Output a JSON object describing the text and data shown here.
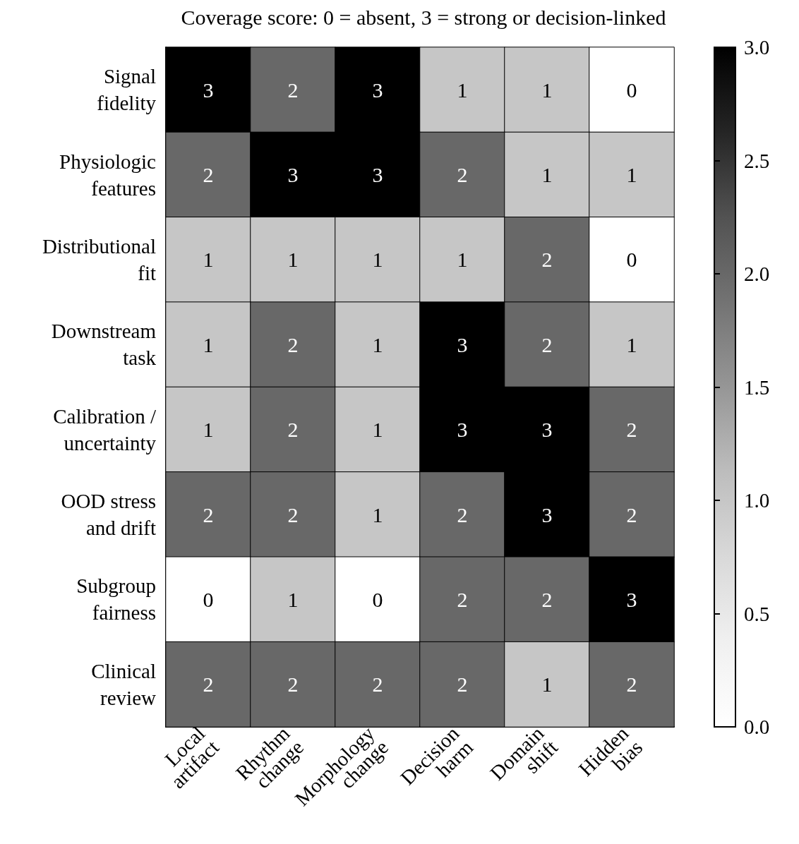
{
  "chart_data": {
    "type": "heatmap",
    "title": "Coverage score: 0 = absent, 3 = strong or decision-linked",
    "categories": [
      "Local\nartifact",
      "Rhythm\nchange",
      "Morphology\nchange",
      "Decision\nharm",
      "Domain\nshift",
      "Hidden\nbias"
    ],
    "y_categories": [
      "Signal\nfidelity",
      "Physiologic\nfeatures",
      "Distributional\nfit",
      "Downstream\ntask",
      "Calibration /\nuncertainty",
      "OOD stress\nand drift",
      "Subgroup\nfairness",
      "Clinical\nreview"
    ],
    "cells": [
      [
        3,
        2,
        3,
        1,
        1,
        0
      ],
      [
        2,
        3,
        3,
        2,
        1,
        1
      ],
      [
        1,
        1,
        1,
        1,
        2,
        0
      ],
      [
        1,
        2,
        1,
        3,
        2,
        1
      ],
      [
        1,
        2,
        1,
        3,
        3,
        2
      ],
      [
        2,
        2,
        1,
        2,
        3,
        2
      ],
      [
        0,
        1,
        0,
        2,
        2,
        3
      ],
      [
        2,
        2,
        2,
        2,
        1,
        2
      ]
    ],
    "data_labels": true,
    "clim": [
      0,
      3
    ],
    "cticks": [
      {
        "value": 0,
        "label": "0.0"
      },
      0.5,
      {
        "value": 1,
        "label": "1.0"
      },
      1.5,
      {
        "value": 2,
        "label": "2.0"
      },
      2.5,
      {
        "value": 3,
        "label": "3.0"
      }
    ]
  }
}
